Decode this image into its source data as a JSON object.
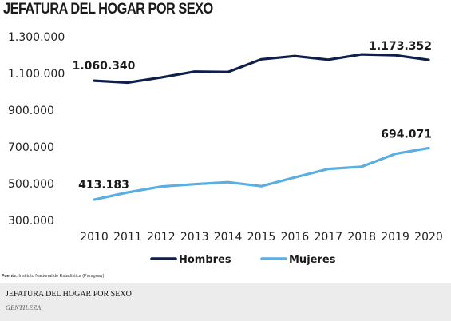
{
  "chart_data": {
    "type": "line",
    "title": "JEFATURA DEL HOGAR POR SEXO",
    "categories": [
      "2010",
      "2011",
      "2012",
      "2013",
      "2014",
      "2015",
      "2016",
      "2017",
      "2018",
      "2019",
      "2020"
    ],
    "series": [
      {
        "name": "Hombres",
        "color": "#0f1f4a",
        "values": [
          1060340,
          1050000,
          1078000,
          1110000,
          1108000,
          1177000,
          1195000,
          1175000,
          1204000,
          1199000,
          1173352
        ]
      },
      {
        "name": "Mujeres",
        "color": "#5aaee0",
        "values": [
          413183,
          452000,
          484000,
          497000,
          508000,
          486000,
          534000,
          580000,
          592000,
          662000,
          694071
        ]
      }
    ],
    "annotations": [
      {
        "series": 0,
        "index": 0,
        "text": "1.060.340"
      },
      {
        "series": 0,
        "index": 10,
        "text": "1.173.352"
      },
      {
        "series": 1,
        "index": 0,
        "text": "413.183"
      },
      {
        "series": 1,
        "index": 10,
        "text": "694.071"
      }
    ],
    "yticks": [
      300000,
      500000,
      700000,
      900000,
      1100000,
      1300000
    ],
    "ytick_labels": [
      "300.000",
      "500.000",
      "700.000",
      "900.000",
      "1.100.000",
      "1.300.000"
    ],
    "ylim": [
      300000,
      1300000
    ],
    "grid": false,
    "legend": "bottom"
  },
  "source": {
    "label": "Fuente:",
    "text": "Instituto Nacional de Estadística (Paraguay)"
  },
  "caption": {
    "title": "JEFATURA DEL HOGAR POR SEXO",
    "credit": "GENTILEZA"
  }
}
